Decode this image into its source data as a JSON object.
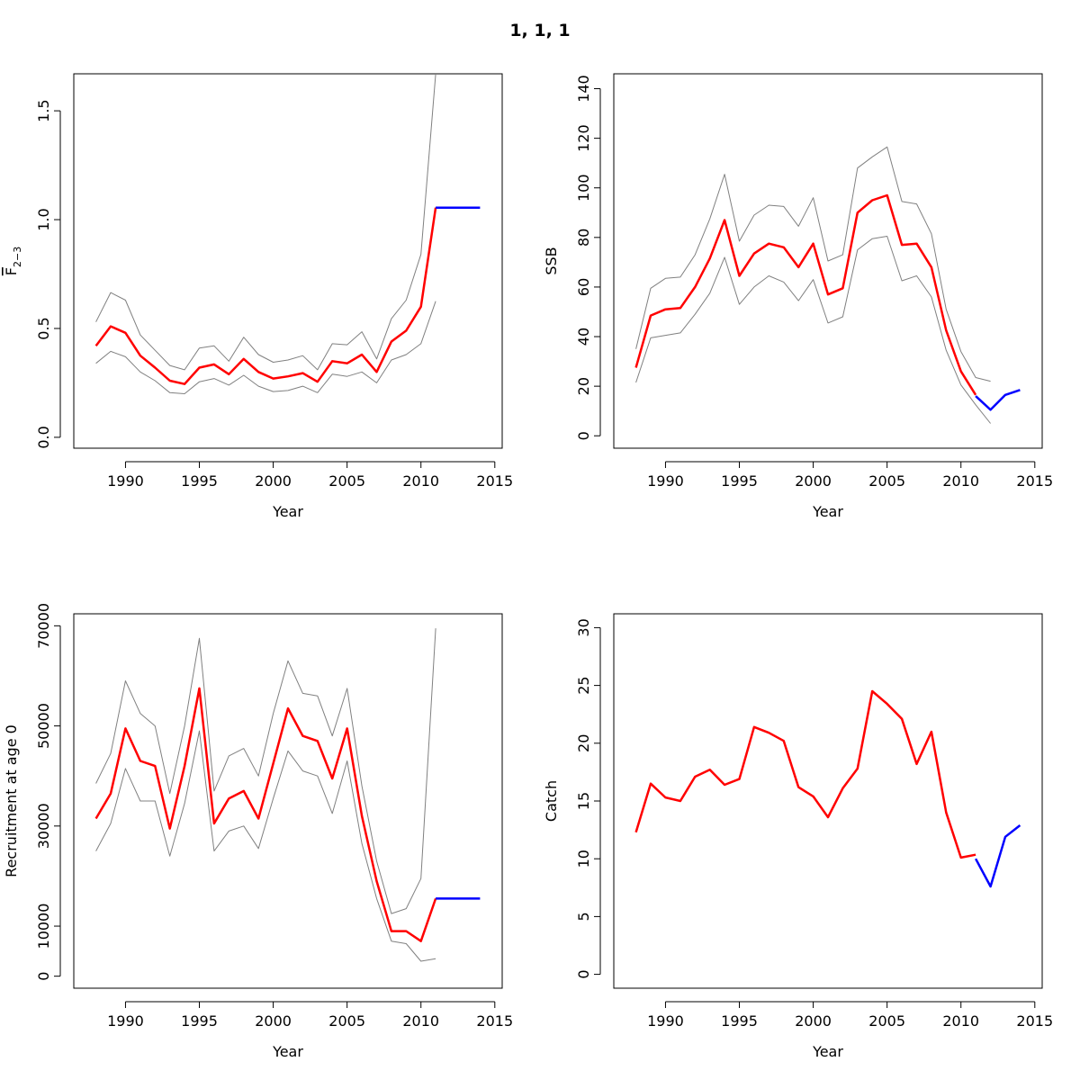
{
  "title": "1, 1, 1",
  "colors": {
    "estimate": "#ff0000",
    "forecast": "#0000ff",
    "bounds": "#808080",
    "axis": "#000000"
  },
  "chart_data": [
    {
      "type": "line",
      "title": "",
      "xlabel": "Year",
      "ylabel": "F",
      "ylabel_subscript": "2−3",
      "xlim": [
        1986.5,
        2015.5
      ],
      "ylim": [
        -0.05,
        1.67
      ],
      "xticks": [
        1990,
        1995,
        2000,
        2005,
        2010,
        2015
      ],
      "xtick_labels": [
        "1990",
        "1995",
        "2000",
        "2005",
        "2010",
        "2015"
      ],
      "yticks": [
        0.0,
        0.5,
        1.0,
        1.5
      ],
      "ytick_labels": [
        "0.0",
        "0.5",
        "1.0",
        "1.5"
      ],
      "series": [
        {
          "role": "upper",
          "x": [
            1988,
            1989,
            1990,
            1991,
            1992,
            1993,
            1994,
            1995,
            1996,
            1997,
            1998,
            1999,
            2000,
            2001,
            2002,
            2003,
            2004,
            2005,
            2006,
            2007,
            2008,
            2009,
            2010,
            2011
          ],
          "values": [
            0.53,
            0.665,
            0.63,
            0.47,
            0.4,
            0.33,
            0.31,
            0.41,
            0.42,
            0.35,
            0.46,
            0.38,
            0.345,
            0.355,
            0.375,
            0.31,
            0.43,
            0.425,
            0.485,
            0.36,
            0.545,
            0.63,
            0.84,
            1.67
          ]
        },
        {
          "role": "lower",
          "x": [
            1988,
            1989,
            1990,
            1991,
            1992,
            1993,
            1994,
            1995,
            1996,
            1997,
            1998,
            1999,
            2000,
            2001,
            2002,
            2003,
            2004,
            2005,
            2006,
            2007,
            2008,
            2009,
            2010,
            2011
          ],
          "values": [
            0.34,
            0.395,
            0.37,
            0.3,
            0.26,
            0.205,
            0.2,
            0.255,
            0.27,
            0.24,
            0.285,
            0.235,
            0.21,
            0.215,
            0.235,
            0.205,
            0.29,
            0.28,
            0.3,
            0.25,
            0.355,
            0.38,
            0.43,
            0.625
          ]
        },
        {
          "role": "estimate",
          "x": [
            1988,
            1989,
            1990,
            1991,
            1992,
            1993,
            1994,
            1995,
            1996,
            1997,
            1998,
            1999,
            2000,
            2001,
            2002,
            2003,
            2004,
            2005,
            2006,
            2007,
            2008,
            2009,
            2010,
            2011
          ],
          "values": [
            0.42,
            0.51,
            0.48,
            0.375,
            0.32,
            0.26,
            0.245,
            0.32,
            0.335,
            0.29,
            0.36,
            0.3,
            0.27,
            0.28,
            0.295,
            0.255,
            0.35,
            0.34,
            0.38,
            0.3,
            0.44,
            0.49,
            0.6,
            1.055
          ]
        },
        {
          "role": "forecast",
          "x": [
            2011,
            2012,
            2013,
            2014
          ],
          "values": [
            1.055,
            1.055,
            1.055,
            1.055
          ]
        }
      ]
    },
    {
      "type": "line",
      "title": "",
      "xlabel": "Year",
      "ylabel": "SSB",
      "xlim": [
        1986.5,
        2015.5
      ],
      "ylim": [
        -5,
        146
      ],
      "xticks": [
        1990,
        1995,
        2000,
        2005,
        2010,
        2015
      ],
      "xtick_labels": [
        "1990",
        "1995",
        "2000",
        "2005",
        "2010",
        "2015"
      ],
      "yticks": [
        0,
        20,
        40,
        60,
        80,
        100,
        120,
        140
      ],
      "ytick_labels": [
        "0",
        "20",
        "40",
        "60",
        "80",
        "100",
        "120",
        "140"
      ],
      "series": [
        {
          "role": "upper",
          "x": [
            1988,
            1989,
            1990,
            1991,
            1992,
            1993,
            1994,
            1995,
            1996,
            1997,
            1998,
            1999,
            2000,
            2001,
            2002,
            2003,
            2004,
            2005,
            2006,
            2007,
            2008,
            2009,
            2010,
            2011,
            2012
          ],
          "values": [
            35,
            59.5,
            63.5,
            64,
            73,
            87.5,
            105.5,
            78.5,
            89,
            93,
            92.5,
            84.5,
            96,
            70.5,
            73,
            108,
            112.5,
            116.5,
            94.5,
            93.5,
            81.5,
            51,
            34,
            23.5,
            22
          ]
        },
        {
          "role": "lower",
          "x": [
            1988,
            1989,
            1990,
            1991,
            1992,
            1993,
            1994,
            1995,
            1996,
            1997,
            1998,
            1999,
            2000,
            2001,
            2002,
            2003,
            2004,
            2005,
            2006,
            2007,
            2008,
            2009,
            2010,
            2011,
            2012
          ],
          "values": [
            21.5,
            39.5,
            40.5,
            41.5,
            49,
            57.5,
            72,
            53,
            60,
            64.5,
            62,
            54.5,
            63,
            45.5,
            48,
            75,
            79.5,
            80.5,
            62.5,
            64.5,
            56,
            34.5,
            20.5,
            12.5,
            5
          ]
        },
        {
          "role": "estimate",
          "x": [
            1988,
            1989,
            1990,
            1991,
            1992,
            1993,
            1994,
            1995,
            1996,
            1997,
            1998,
            1999,
            2000,
            2001,
            2002,
            2003,
            2004,
            2005,
            2006,
            2007,
            2008,
            2009,
            2010,
            2011
          ],
          "values": [
            27.5,
            48.5,
            51,
            51.5,
            60,
            71.5,
            87,
            64.5,
            73.5,
            77.5,
            76,
            68,
            77.5,
            57,
            59.5,
            90,
            95,
            97,
            77,
            77.5,
            68,
            42.5,
            26,
            16.5
          ]
        },
        {
          "role": "forecast",
          "x": [
            2011,
            2012,
            2013,
            2014
          ],
          "values": [
            16,
            10.5,
            16.5,
            18.5
          ]
        }
      ]
    },
    {
      "type": "line",
      "title": "",
      "xlabel": "Year",
      "ylabel": "Recruitment at age 0",
      "xlim": [
        1986.5,
        2015.5
      ],
      "ylim": [
        -2400,
        72400
      ],
      "xticks": [
        1990,
        1995,
        2000,
        2005,
        2010,
        2015
      ],
      "xtick_labels": [
        "1990",
        "1995",
        "2000",
        "2005",
        "2010",
        "2015"
      ],
      "yticks": [
        0,
        10000,
        30000,
        50000,
        70000
      ],
      "ytick_labels": [
        "0",
        "10000",
        "30000",
        "50000",
        "70000"
      ],
      "series": [
        {
          "role": "upper",
          "x": [
            1988,
            1989,
            1990,
            1991,
            1992,
            1993,
            1994,
            1995,
            1996,
            1997,
            1998,
            1999,
            2000,
            2001,
            2002,
            2003,
            2004,
            2005,
            2006,
            2007,
            2008,
            2009,
            2010,
            2011
          ],
          "values": [
            38500,
            44500,
            59000,
            52500,
            50000,
            36500,
            50000,
            67500,
            37000,
            44000,
            45500,
            40000,
            52500,
            63000,
            56500,
            56000,
            48000,
            57500,
            38000,
            23000,
            12500,
            13500,
            19500,
            69500
          ]
        },
        {
          "role": "lower",
          "x": [
            1988,
            1989,
            1990,
            1991,
            1992,
            1993,
            1994,
            1995,
            1996,
            1997,
            1998,
            1999,
            2000,
            2001,
            2002,
            2003,
            2004,
            2005,
            2006,
            2007,
            2008,
            2009,
            2010,
            2011
          ],
          "values": [
            25000,
            30500,
            41500,
            35000,
            35000,
            24000,
            34500,
            49000,
            25000,
            29000,
            30000,
            25500,
            35500,
            45000,
            41000,
            40000,
            32500,
            43000,
            26500,
            15500,
            7000,
            6500,
            3000,
            3500
          ]
        },
        {
          "role": "estimate",
          "x": [
            1988,
            1989,
            1990,
            1991,
            1992,
            1993,
            1994,
            1995,
            1996,
            1997,
            1998,
            1999,
            2000,
            2001,
            2002,
            2003,
            2004,
            2005,
            2006,
            2007,
            2008,
            2009,
            2010,
            2011
          ],
          "values": [
            31500,
            36500,
            49500,
            43000,
            42000,
            29500,
            42000,
            57500,
            30500,
            35500,
            37000,
            31500,
            42500,
            53500,
            48000,
            47000,
            39500,
            49500,
            32000,
            19000,
            9000,
            9000,
            7000,
            15500
          ]
        },
        {
          "role": "forecast",
          "x": [
            2011,
            2012,
            2013,
            2014
          ],
          "values": [
            15500,
            15500,
            15500,
            15500
          ]
        }
      ]
    },
    {
      "type": "line",
      "title": "",
      "xlabel": "Year",
      "ylabel": "Catch",
      "xlim": [
        1986.5,
        2015.5
      ],
      "ylim": [
        -1.2,
        31.2
      ],
      "xticks": [
        1990,
        1995,
        2000,
        2005,
        2010,
        2015
      ],
      "xtick_labels": [
        "1990",
        "1995",
        "2000",
        "2005",
        "2010",
        "2015"
      ],
      "yticks": [
        0,
        5,
        10,
        15,
        20,
        25,
        30
      ],
      "ytick_labels": [
        "0",
        "5",
        "10",
        "15",
        "20",
        "25",
        "30"
      ],
      "series": [
        {
          "role": "estimate",
          "x": [
            1988,
            1989,
            1990,
            1991,
            1992,
            1993,
            1994,
            1995,
            1996,
            1997,
            1998,
            1999,
            2000,
            2001,
            2002,
            2003,
            2004,
            2005,
            2006,
            2007,
            2008,
            2009,
            2010,
            2011
          ],
          "values": [
            12.3,
            16.5,
            15.3,
            15.0,
            17.1,
            17.7,
            16.4,
            16.9,
            21.4,
            20.9,
            20.2,
            16.2,
            15.4,
            13.6,
            16.1,
            17.8,
            24.5,
            23.4,
            22.1,
            18.2,
            21.0,
            14.0,
            10.1,
            10.35
          ]
        },
        {
          "role": "forecast",
          "x": [
            2011,
            2012,
            2013,
            2014
          ],
          "values": [
            10.0,
            7.6,
            11.9,
            12.9
          ]
        }
      ]
    }
  ]
}
